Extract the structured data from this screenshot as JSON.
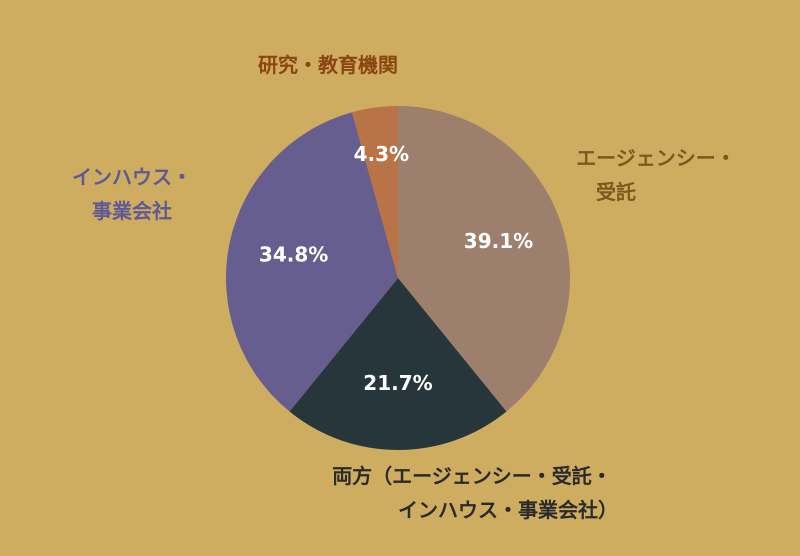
{
  "chart_data": {
    "type": "pie",
    "background": "#cfad60",
    "slices": [
      {
        "label_lines": [
          "エージェンシー・",
          "受託"
        ],
        "value": 39.1,
        "display": "39.1%",
        "color": "#9c7f6d",
        "label_color": "#7a5a1e"
      },
      {
        "label_lines": [
          "両方（エージェンシー・受託・",
          "インハウス・事業会社）"
        ],
        "value": 21.7,
        "display": "21.7%",
        "color": "#27363a",
        "label_color": "#2a2a2a"
      },
      {
        "label_lines": [
          "インハウス・",
          "事業会社"
        ],
        "value": 34.8,
        "display": "34.8%",
        "color": "#665e8e",
        "label_color": "#5f5996"
      },
      {
        "label_lines": [
          "研究・教育機関"
        ],
        "value": 4.3,
        "display": "4.3%",
        "color": "#b87346",
        "label_color": "#8b4513"
      }
    ]
  }
}
